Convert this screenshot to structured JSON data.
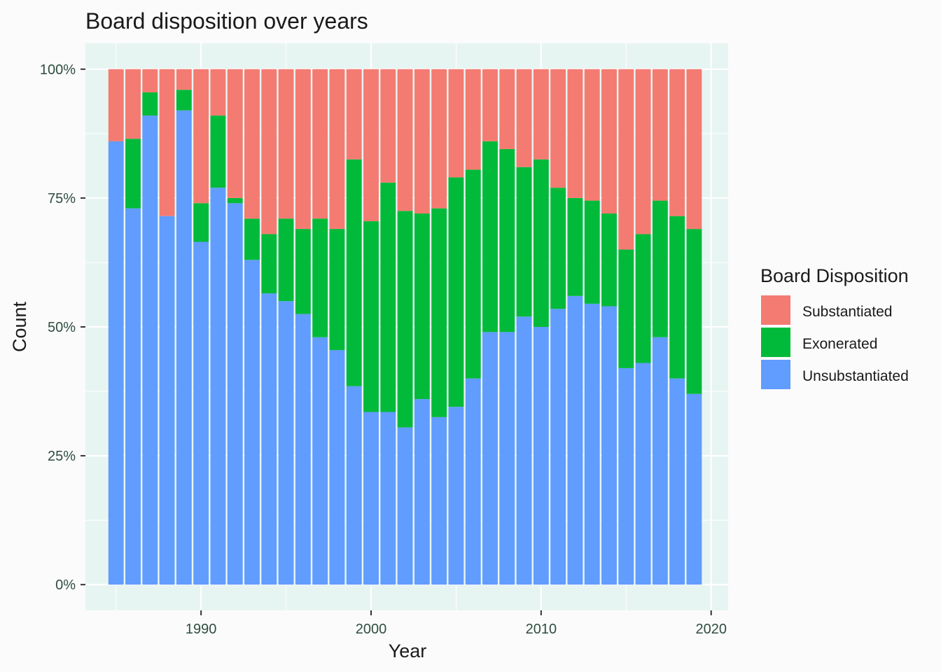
{
  "chart_data": {
    "type": "bar",
    "stacked": true,
    "normalized": true,
    "title": "Board disposition over years",
    "xlabel": "Year",
    "ylabel": "Count",
    "xlim": [
      1983.2,
      2021.0
    ],
    "ylim": [
      -0.05,
      1.05
    ],
    "x_ticks": [
      1990,
      2000,
      2010,
      2020
    ],
    "y_ticks": [
      0,
      0.25,
      0.5,
      0.75,
      1.0
    ],
    "y_tick_labels": [
      "0%",
      "25%",
      "50%",
      "75%",
      "100%"
    ],
    "grid": true,
    "legend_position": "right",
    "legend_title": "Board Disposition",
    "colors": {
      "Substantiated": "#f47b72",
      "Exonerated": "#02ba39",
      "Unsubstantiated": "#619cff",
      "panel_background": "#e7f5f2",
      "grid_line": "#ffffff"
    },
    "years": [
      1985,
      1986,
      1987,
      1988,
      1989,
      1990,
      1991,
      1992,
      1993,
      1994,
      1995,
      1996,
      1997,
      1998,
      1999,
      2000,
      2001,
      2002,
      2003,
      2004,
      2005,
      2006,
      2007,
      2008,
      2009,
      2010,
      2011,
      2012,
      2013,
      2014,
      2015,
      2016,
      2017,
      2018,
      2019
    ],
    "series": [
      {
        "name": "Unsubstantiated",
        "values": [
          0.86,
          0.73,
          0.91,
          0.715,
          0.92,
          0.665,
          0.77,
          0.74,
          0.63,
          0.565,
          0.55,
          0.525,
          0.48,
          0.455,
          0.385,
          0.335,
          0.335,
          0.305,
          0.36,
          0.325,
          0.345,
          0.4,
          0.49,
          0.49,
          0.52,
          0.5,
          0.535,
          0.56,
          0.545,
          0.54,
          0.42,
          0.43,
          0.48,
          0.4,
          0.37
        ]
      },
      {
        "name": "Exonerated",
        "values": [
          0.0,
          0.135,
          0.045,
          0.0,
          0.04,
          0.075,
          0.14,
          0.01,
          0.08,
          0.115,
          0.16,
          0.165,
          0.23,
          0.235,
          0.44,
          0.37,
          0.445,
          0.42,
          0.36,
          0.405,
          0.445,
          0.405,
          0.37,
          0.355,
          0.29,
          0.325,
          0.235,
          0.19,
          0.2,
          0.18,
          0.23,
          0.25,
          0.265,
          0.315,
          0.32
        ]
      },
      {
        "name": "Substantiated",
        "values": [
          0.14,
          0.135,
          0.045,
          0.285,
          0.04,
          0.26,
          0.09,
          0.25,
          0.29,
          0.32,
          0.29,
          0.31,
          0.29,
          0.31,
          0.175,
          0.295,
          0.22,
          0.275,
          0.28,
          0.27,
          0.21,
          0.195,
          0.14,
          0.155,
          0.19,
          0.175,
          0.23,
          0.25,
          0.255,
          0.28,
          0.35,
          0.32,
          0.255,
          0.285,
          0.31
        ]
      }
    ]
  }
}
